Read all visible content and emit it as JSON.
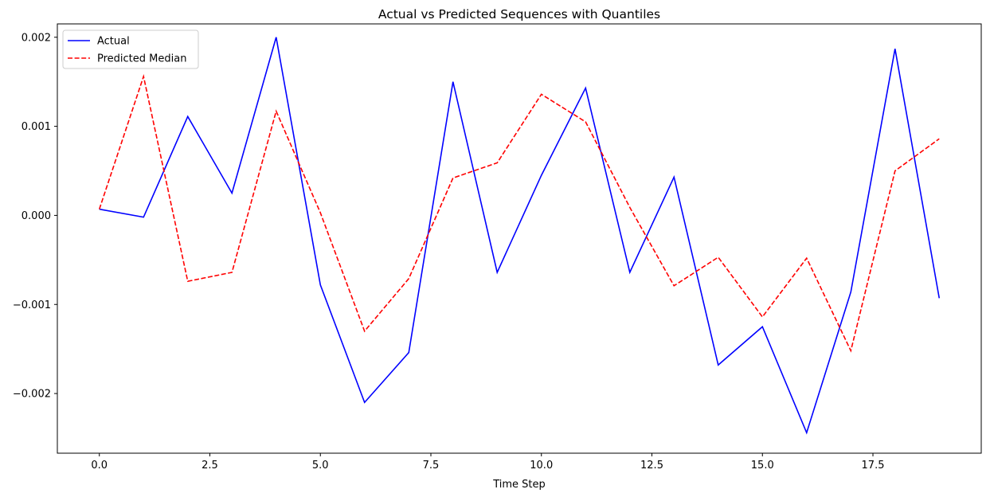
{
  "chart_data": {
    "type": "line",
    "title": "Actual vs Predicted Sequences with Quantiles",
    "xlabel": "Time Step",
    "ylabel": "",
    "xlim": [
      -0.95,
      19.95
    ],
    "ylim": [
      -0.00267,
      0.00215
    ],
    "xticks": [
      0.0,
      2.5,
      5.0,
      7.5,
      10.0,
      12.5,
      15.0,
      17.5
    ],
    "xtick_labels": [
      "0.0",
      "2.5",
      "5.0",
      "7.5",
      "10.0",
      "12.5",
      "15.0",
      "17.5"
    ],
    "yticks": [
      -0.002,
      -0.001,
      0.0,
      0.001,
      0.002
    ],
    "ytick_labels": [
      "−0.002",
      "−0.001",
      "0.000",
      "0.001",
      "0.002"
    ],
    "grid": false,
    "legend_position": "top-left",
    "x": [
      0,
      1,
      2,
      3,
      4,
      5,
      6,
      7,
      8,
      9,
      10,
      11,
      12,
      13,
      14,
      15,
      16,
      17,
      18,
      19
    ],
    "series": [
      {
        "name": "Actual",
        "color": "#0000ff",
        "style": "solid",
        "values": [
          7e-05,
          -2e-05,
          0.00111,
          0.00025,
          0.002,
          -0.00078,
          -0.0021,
          -0.00154,
          0.0015,
          -0.00064,
          0.00045,
          0.00143,
          -0.00064,
          0.00043,
          -0.00168,
          -0.00125,
          -0.00244,
          -0.00086,
          0.00187,
          -0.00093
        ]
      },
      {
        "name": "Predicted Median",
        "color": "#ff0000",
        "style": "dashed",
        "values": [
          7e-05,
          0.00156,
          -0.00074,
          -0.00064,
          0.00117,
          3e-05,
          -0.0013,
          -0.00071,
          0.00042,
          0.00059,
          0.00136,
          0.00105,
          9e-05,
          -0.00079,
          -0.00047,
          -0.00114,
          -0.00048,
          -0.00152,
          0.0005,
          0.00086
        ]
      }
    ]
  }
}
